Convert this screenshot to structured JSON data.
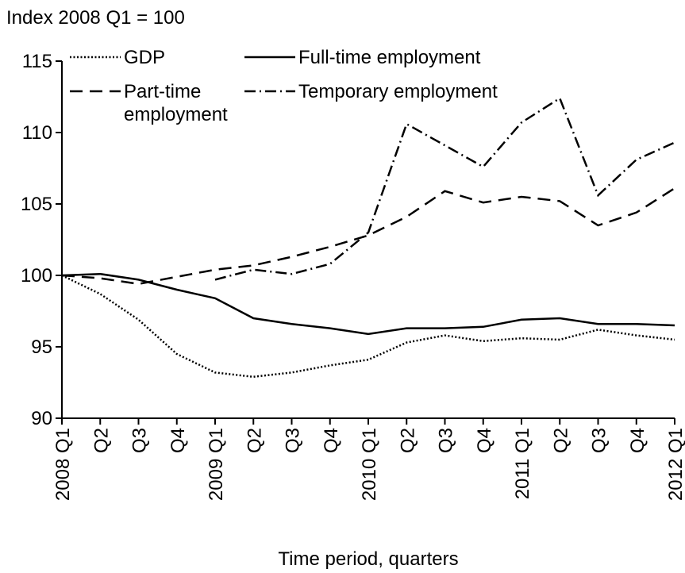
{
  "chart_data": {
    "type": "line",
    "y_axis_label": "Index 2008 Q1 = 100",
    "x_axis_label": "Time period, quarters",
    "categories": [
      "2008 Q1",
      "Q2",
      "Q3",
      "Q4",
      "2009 Q1",
      "Q2",
      "Q3",
      "Q4",
      "2010 Q1",
      "Q2",
      "Q3",
      "Q4",
      "2011 Q1",
      "Q2",
      "Q3",
      "Q4",
      "2012 Q1"
    ],
    "series": [
      {
        "name": "GDP",
        "color": "#000000",
        "line_style": "dotted",
        "values": [
          100,
          98.7,
          96.9,
          94.5,
          93.2,
          92.9,
          93.2,
          93.7,
          94.1,
          95.3,
          95.8,
          95.4,
          95.6,
          95.5,
          96.2,
          95.8,
          95.5
        ]
      },
      {
        "name": "Full-time employment",
        "color": "#000000",
        "line_style": "solid",
        "values": [
          100,
          100.1,
          99.7,
          99.0,
          98.4,
          97.0,
          96.6,
          96.3,
          95.9,
          96.3,
          96.3,
          96.4,
          96.9,
          97.0,
          96.6,
          96.6,
          96.5
        ]
      },
      {
        "name": "Part-time employment",
        "color": "#000000",
        "line_style": "dashed",
        "values": [
          100,
          99.8,
          99.4,
          99.9,
          100.4,
          100.7,
          101.3,
          102.0,
          102.8,
          104.1,
          105.9,
          105.1,
          105.5,
          105.2,
          103.5,
          104.4,
          106.1
        ]
      },
      {
        "name": "Temporary employment",
        "color": "#000000",
        "line_style": "dashdot",
        "values": [
          null,
          null,
          null,
          null,
          99.7,
          100.4,
          100.1,
          100.8,
          103.0,
          110.6,
          109.1,
          107.6,
          110.7,
          112.4,
          105.6,
          108.1,
          109.3
        ]
      }
    ],
    "ylim": [
      90,
      115
    ],
    "yticks": [
      90,
      95,
      100,
      105,
      110,
      115
    ],
    "legend": "top"
  }
}
